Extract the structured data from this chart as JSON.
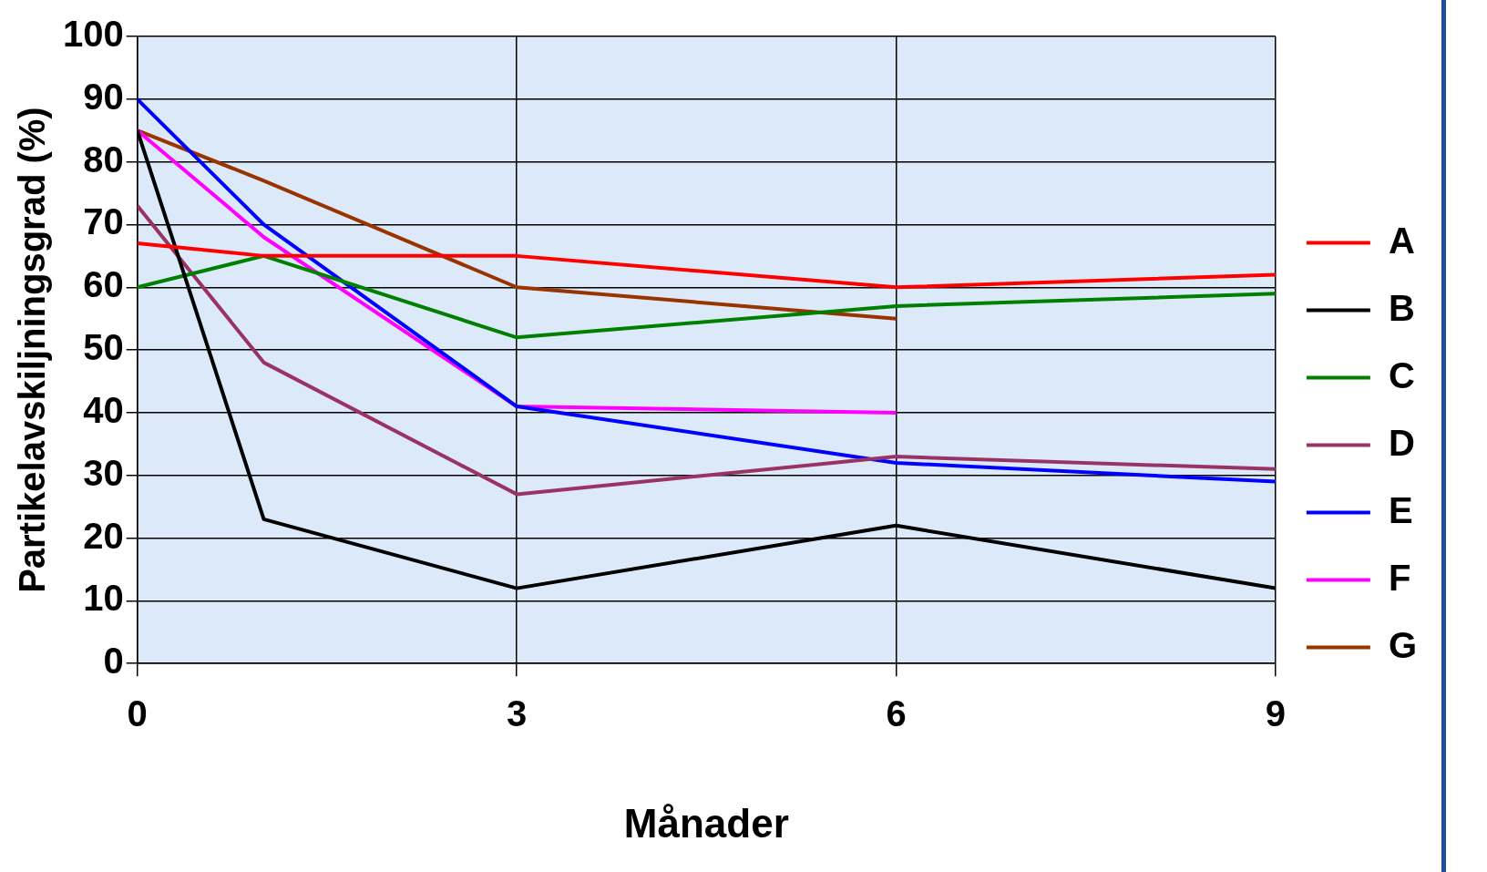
{
  "chart_data": {
    "type": "line",
    "xlabel": "Månader",
    "ylabel": "Partikelavskiljningsgrad (%)",
    "x": [
      0,
      1,
      3,
      6,
      9
    ],
    "xlim": [
      0,
      9
    ],
    "xticks": [
      0,
      3,
      6,
      9
    ],
    "ylim": [
      0,
      100
    ],
    "yticks": [
      0,
      10,
      20,
      30,
      40,
      50,
      60,
      70,
      80,
      90,
      100
    ],
    "grid": true,
    "legend": "right",
    "marker": "none",
    "series": [
      {
        "name": "A",
        "color": "#ff0000",
        "values": [
          67,
          65,
          65,
          60,
          62
        ]
      },
      {
        "name": "B",
        "color": "#000000",
        "values": [
          85,
          23,
          12,
          22,
          12
        ]
      },
      {
        "name": "C",
        "color": "#008000",
        "values": [
          60,
          65,
          52,
          57,
          59
        ]
      },
      {
        "name": "D",
        "color": "#993366",
        "values": [
          73,
          48,
          27,
          33,
          31
        ]
      },
      {
        "name": "E",
        "color": "#0000ff",
        "values": [
          90,
          70,
          41,
          32,
          29
        ]
      },
      {
        "name": "F",
        "color": "#ff00ff",
        "values": [
          85,
          68,
          41,
          40,
          null
        ]
      },
      {
        "name": "G",
        "color": "#993300",
        "values": [
          85,
          77,
          60,
          55,
          null
        ]
      }
    ]
  }
}
